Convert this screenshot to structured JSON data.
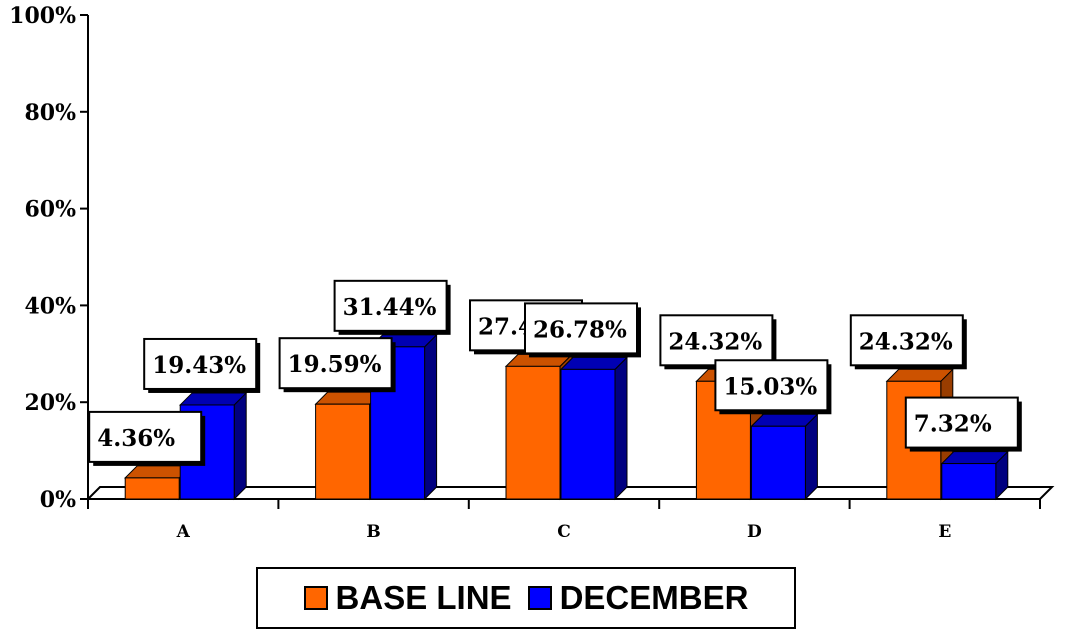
{
  "chart_data": {
    "type": "bar",
    "categories": [
      "A",
      "B",
      "C",
      "D",
      "E"
    ],
    "series": [
      {
        "name": "BASE LINE",
        "values": [
          4.36,
          19.59,
          27.41,
          24.32,
          24.32
        ],
        "color": "#ff6600",
        "side_color": "#993d00",
        "top_color": "#cc5200"
      },
      {
        "name": "DECEMBER",
        "values": [
          19.43,
          31.44,
          26.78,
          15.03,
          7.32
        ],
        "color": "#0000ff",
        "side_color": "#000080",
        "top_color": "#0000b3"
      }
    ],
    "data_labels": [
      [
        "4.36%",
        "19.59%",
        "27.41%",
        "24.32%",
        "24.32%"
      ],
      [
        "19.43%",
        "31.44%",
        "26.78%",
        "15.03%",
        "7.32%"
      ]
    ],
    "ylim": [
      0,
      100
    ],
    "yticks": [
      "0%",
      "20%",
      "40%",
      "60%",
      "80%",
      "100%"
    ],
    "title": "",
    "xlabel": "",
    "ylabel": "",
    "legend_position": "bottom-center",
    "grid": false
  }
}
